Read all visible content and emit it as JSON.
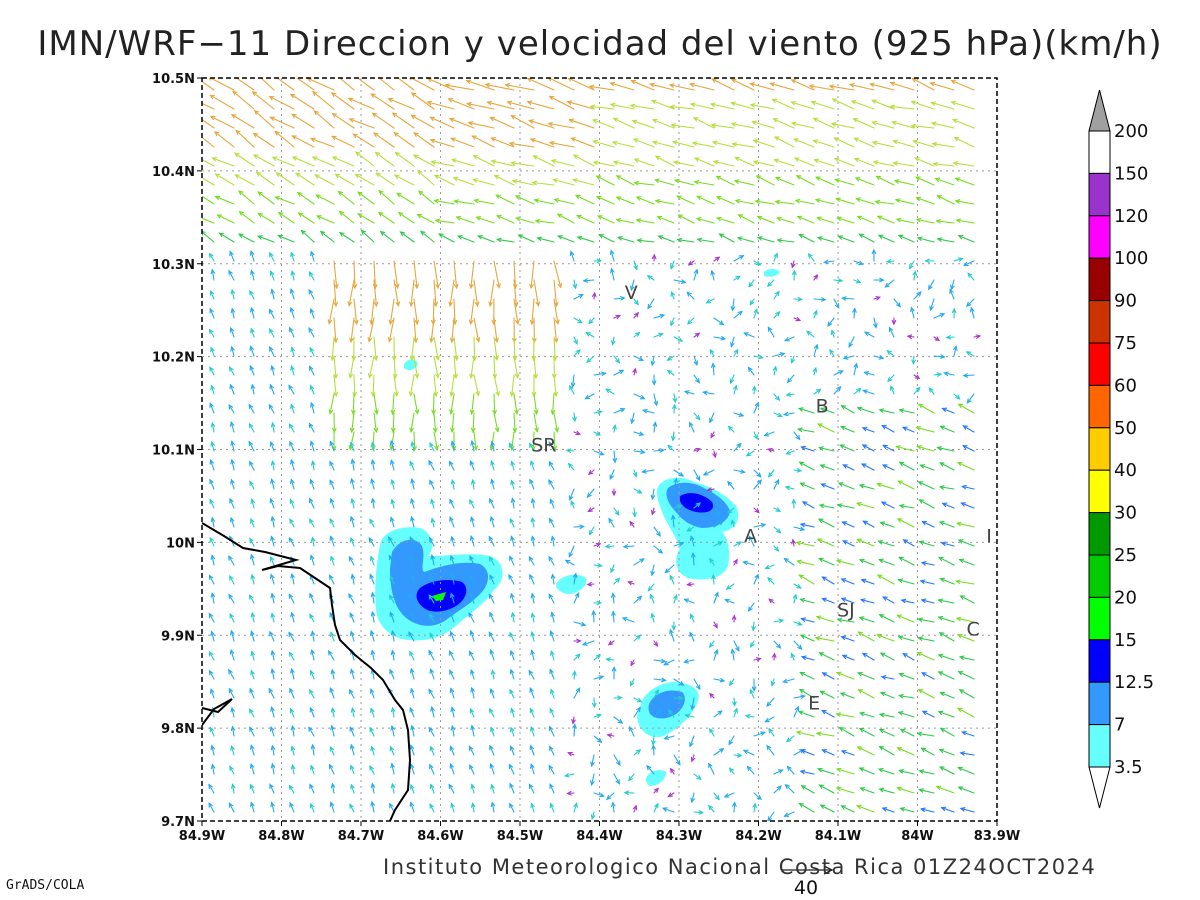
{
  "title": "IMN/WRF−11 Direccion y velocidad del viento (925 hPa)(km/h)",
  "footer": "Instituto Meteorologico Nacional Costa Rica 01Z24OCT2024",
  "software_label": "GrADS/COLA",
  "reference_vector_label": "40",
  "map": {
    "x_ticks": [
      "84.9W",
      "84.8W",
      "84.7W",
      "84.6W",
      "84.5W",
      "84.4W",
      "84.3W",
      "84.2W",
      "84.1W",
      "84W",
      "83.9W"
    ],
    "y_ticks": [
      "10.5N",
      "10.4N",
      "10.3N",
      "10.2N",
      "10.1N",
      "10N",
      "9.9N",
      "9.8N",
      "9.7N"
    ],
    "lon_range": [
      -84.9,
      -83.9
    ],
    "lat_range": [
      9.7,
      10.5
    ],
    "grid": true,
    "places": [
      {
        "label": "V",
        "lon": -84.36,
        "lat": 10.262
      },
      {
        "label": "B",
        "lon": -84.12,
        "lat": 10.14
      },
      {
        "label": "SR",
        "lon": -84.47,
        "lat": 10.098
      },
      {
        "label": "A",
        "lon": -84.21,
        "lat": 10.0
      },
      {
        "label": "I",
        "lon": -83.91,
        "lat": 10.0
      },
      {
        "label": "SJ",
        "lon": -84.09,
        "lat": 9.92
      },
      {
        "label": "C",
        "lon": -83.93,
        "lat": 9.9
      },
      {
        "label": "E",
        "lon": -84.13,
        "lat": 9.82
      }
    ]
  },
  "colorbar": {
    "labels": [
      "200",
      "150",
      "120",
      "100",
      "90",
      "75",
      "60",
      "50",
      "40",
      "30",
      "25",
      "20",
      "15",
      "12.5",
      "7",
      "3.5"
    ],
    "colors": [
      "#ffffff",
      "#9933cc",
      "#ff00ff",
      "#990000",
      "#cc3300",
      "#ff0000",
      "#ff6600",
      "#ffcc00",
      "#ffff00",
      "#009900",
      "#00cc00",
      "#00ff00",
      "#0000ff",
      "#3399ff",
      "#66ffff"
    ],
    "top_arrow_color": "#a0a0a0",
    "bottom_arrow_color": "#ffffff"
  }
}
